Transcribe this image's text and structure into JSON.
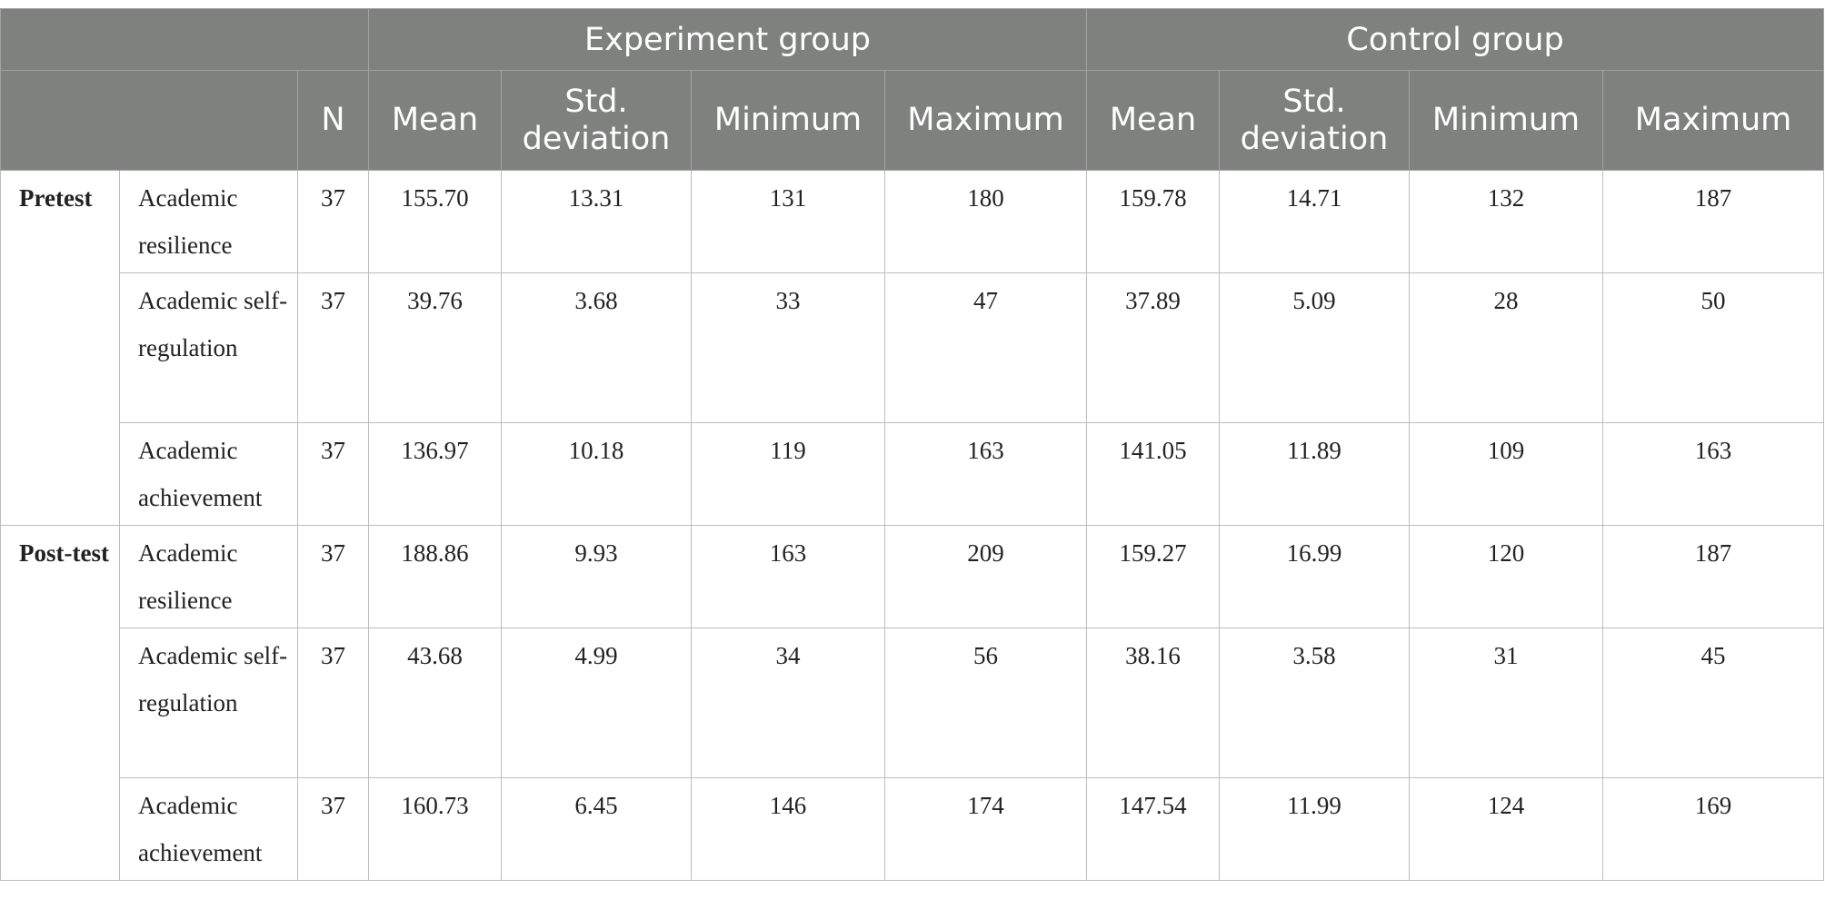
{
  "header": {
    "group_experiment": "Experiment group",
    "group_control": "Control group",
    "col_n": "N",
    "col_mean": "Mean",
    "col_std": "Std. deviation",
    "col_min": "Minimum",
    "col_max": "Maximum"
  },
  "rows": [
    {
      "phase": "Pretest",
      "measure": "Academic resilience",
      "n": "37",
      "exp": [
        "155.70",
        "13.31",
        "131",
        "180"
      ],
      "ctl": [
        "159.78",
        "14.71",
        "132",
        "187"
      ]
    },
    {
      "phase": "",
      "measure": "Academic self-regulation",
      "n": "37",
      "exp": [
        "39.76",
        "3.68",
        "33",
        "47"
      ],
      "ctl": [
        "37.89",
        "5.09",
        "28",
        "50"
      ]
    },
    {
      "phase": "",
      "measure": "Academic achievement",
      "n": "37",
      "exp": [
        "136.97",
        "10.18",
        "119",
        "163"
      ],
      "ctl": [
        "141.05",
        "11.89",
        "109",
        "163"
      ]
    },
    {
      "phase": "Post-test",
      "measure": "Academic resilience",
      "n": "37",
      "exp": [
        "188.86",
        "9.93",
        "163",
        "209"
      ],
      "ctl": [
        "159.27",
        "16.99",
        "120",
        "187"
      ]
    },
    {
      "phase": "",
      "measure": "Academic self-regulation",
      "n": "37",
      "exp": [
        "43.68",
        "4.99",
        "34",
        "56"
      ],
      "ctl": [
        "38.16",
        "3.58",
        "31",
        "45"
      ]
    },
    {
      "phase": "",
      "measure": "Academic achievement",
      "n": "37",
      "exp": [
        "160.73",
        "6.45",
        "146",
        "174"
      ],
      "ctl": [
        "147.54",
        "11.99",
        "124",
        "169"
      ]
    }
  ]
}
